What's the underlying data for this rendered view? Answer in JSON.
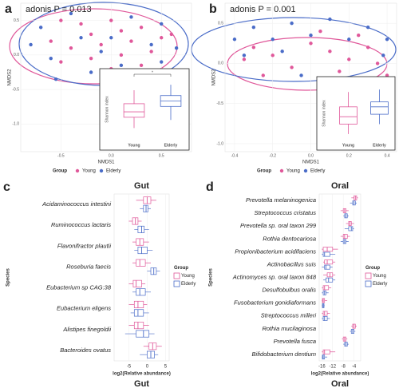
{
  "chart_data": [
    {
      "type": "scatter",
      "label": "a",
      "annotation": "adonis P = 0.013",
      "xlabel": "NMDS1",
      "ylabel": "NMDS2",
      "xlim": [
        -0.9,
        0.8
      ],
      "ylim": [
        -1.4,
        0.75
      ],
      "xticks": [
        -0.5,
        {
          "value": 0,
          "label": "0.0"
        },
        0.5
      ],
      "yticks": [
        0.5,
        {
          "value": 0,
          "label": "0.0"
        },
        -0.5,
        {
          "value": -1,
          "label": "-1.0"
        }
      ],
      "legend_title": "Group",
      "series": [
        {
          "name": "Young",
          "color": "#e0589a",
          "x": [
            -0.5,
            -0.3,
            -0.2,
            0.0,
            0.1,
            0.3,
            -0.6,
            -0.4,
            -0.1,
            0.2,
            0.5,
            -0.2,
            0.1,
            0.4,
            -0.5,
            0.0,
            0.3,
            0.6
          ],
          "values": [
            0.5,
            0.45,
            0.3,
            0.5,
            0.35,
            0.4,
            0.2,
            0.1,
            0.15,
            0.2,
            0.25,
            -0.05,
            0.0,
            0.05,
            -0.1,
            -0.2,
            -0.15,
            0.3
          ]
        },
        {
          "name": "Elderly",
          "color": "#4a6cc8",
          "x": [
            -0.7,
            -0.4,
            0.2,
            0.5,
            -0.3,
            0.0,
            0.4,
            -0.6,
            -0.2,
            0.2,
            0.5,
            0.65,
            -0.1,
            -0.8,
            -0.55,
            0.1
          ],
          "values": [
            0.4,
            0.6,
            0.55,
            0.45,
            0.25,
            0.25,
            0.15,
            -0.05,
            -0.25,
            -0.3,
            -0.1,
            0.1,
            0.05,
            0.15,
            -0.35,
            -0.15
          ]
        }
      ],
      "inset": {
        "type": "box",
        "ylabel": "Shannon index",
        "annotation": "*",
        "ylim": [
          2.6,
          4.9
        ],
        "categories": [
          "Young",
          "Elderly"
        ],
        "colors": [
          "#e0589a",
          "#4a6cc8"
        ],
        "values": [
          [
            3.0,
            3.4,
            3.6,
            3.9,
            4.4
          ],
          [
            3.3,
            3.8,
            4.0,
            4.2,
            4.6
          ]
        ]
      }
    },
    {
      "type": "scatter",
      "label": "b",
      "annotation": "adonis P = 0.001",
      "xlabel": "NMDS1",
      "ylabel": "NMDS2",
      "xlim": [
        -0.45,
        0.45
      ],
      "ylim": [
        -1.1,
        0.75
      ],
      "xticks": [
        -0.4,
        -0.2,
        {
          "value": 0,
          "label": "0.0"
        },
        0.2,
        0.4
      ],
      "yticks": [
        0.5,
        {
          "value": 0,
          "label": "0.0"
        },
        -0.5,
        {
          "value": -1,
          "label": "-1.0"
        }
      ],
      "legend_title": "Group",
      "series": [
        {
          "name": "Young",
          "color": "#e0589a",
          "x": [
            -0.3,
            -0.2,
            0.0,
            0.1,
            0.2,
            0.3,
            -0.1,
            0.15,
            0.35,
            -0.25,
            0.05,
            0.25,
            0.4,
            -0.35
          ],
          "values": [
            0.2,
            0.1,
            0.25,
            0.15,
            0.05,
            0.2,
            -0.05,
            -0.1,
            0.0,
            -0.15,
            0.4,
            0.35,
            -0.15,
            0.05
          ]
        },
        {
          "name": "Elderly",
          "color": "#4a6cc8",
          "x": [
            -0.4,
            -0.3,
            -0.1,
            0.1,
            0.3,
            0.4,
            -0.2,
            0.0,
            0.2,
            -0.35,
            -0.15,
            0.38,
            -0.05
          ],
          "values": [
            0.3,
            0.45,
            0.5,
            0.55,
            0.45,
            0.3,
            0.3,
            0.35,
            0.3,
            0.1,
            0.15,
            0.1,
            -0.15
          ]
        }
      ],
      "inset": {
        "type": "box",
        "ylabel": "Shannon index",
        "ylim": [
          2.4,
          4.6
        ],
        "categories": [
          "Young",
          "Elderly"
        ],
        "colors": [
          "#e0589a",
          "#4a6cc8"
        ],
        "values": [
          [
            2.6,
            3.0,
            3.3,
            3.7,
            4.3
          ],
          [
            3.0,
            3.4,
            3.7,
            3.9,
            4.4
          ]
        ]
      }
    },
    {
      "type": "box",
      "label": "c",
      "title": "Gut",
      "caption": "Gut",
      "xlabel": "log2(Relative abundance)",
      "ylabel": "Species",
      "xlim": [
        -9,
        6
      ],
      "xticks": [
        -5,
        0,
        5
      ],
      "legend_title": "Group",
      "categories": [
        "Acidaminococcus intestini",
        "Ruminococcus lactaris",
        "Flavonifractor plautii",
        "Roseburia faecis",
        "Eubacterium sp CAG:38",
        "Eubacterium eligens",
        "Alistipes finegoldii",
        "Bacteroides ovatus"
      ],
      "series": [
        {
          "name": "Young",
          "color": "#e0589a",
          "values": [
            [
              -3,
              -1,
              0,
              1,
              2.5
            ],
            [
              -5,
              -4,
              -3.2,
              -2.5,
              -1.5
            ],
            [
              -4,
              -3,
              -2,
              -1,
              0.5
            ],
            [
              -4,
              -3,
              -2,
              -0.5,
              1
            ],
            [
              -5,
              -3.8,
              -3,
              -1.5,
              -0.5
            ],
            [
              -5,
              -3.5,
              -2.5,
              -1,
              0
            ],
            [
              -5,
              -3.5,
              -2.5,
              -1,
              0.5
            ],
            [
              -1,
              0.5,
              1.5,
              2.5,
              4
            ]
          ]
        },
        {
          "name": "Elderly",
          "color": "#4a6cc8",
          "values": [
            [
              -2,
              -1,
              -0.3,
              0.2,
              1
            ],
            [
              -3.5,
              -2.5,
              -1.5,
              -0.8,
              0.5
            ],
            [
              -3.5,
              -2.5,
              -1.5,
              0,
              1.5
            ],
            [
              0,
              1,
              1.8,
              2.5,
              3.5
            ],
            [
              -4,
              -3,
              -2,
              -0.5,
              1
            ],
            [
              -4.5,
              -3.5,
              -2.5,
              -1,
              0.5
            ],
            [
              -6,
              -3,
              -1,
              0.5,
              2
            ],
            [
              -2,
              0,
              1,
              2,
              3
            ]
          ]
        }
      ]
    },
    {
      "type": "box",
      "label": "d",
      "title": "Oral",
      "caption": "Oral",
      "xlabel": "log2(Relative abundance)",
      "ylabel": "Species",
      "xlim": [
        -17,
        -1.5
      ],
      "xticks": [
        -16,
        -12,
        -8,
        -4
      ],
      "legend_title": "Group",
      "categories": [
        "Prevotella melaninogenica",
        "Streptococcus cristatus",
        "Prevotella sp. oral taxon 299",
        "Rothia dentocariosa",
        "Propionibacterium acidifaciens",
        "Actinobacillus suis",
        "Actinomyces sp. oral taxon 848",
        "Desulfobulbus oralis",
        "Fusobacterium gonidiaformans",
        "Streptococcus milleri",
        "Rothia mucilaginosa",
        "Prevotella fusca",
        "Bifidobacterium dentium"
      ],
      "series": [
        {
          "name": "Young",
          "color": "#e0589a",
          "values": [
            [
              -5,
              -4,
              -3.5,
              -3,
              -2.5
            ],
            [
              -9,
              -8,
              -7.5,
              -7,
              -6
            ],
            [
              -7,
              -6,
              -5.5,
              -5,
              -4
            ],
            [
              -9,
              -8,
              -7.5,
              -6.5,
              -5.5
            ],
            [
              -16,
              -15.5,
              -14,
              -12,
              -10
            ],
            [
              -15.5,
              -15,
              -14,
              -12,
              -11
            ],
            [
              -15.5,
              -14,
              -13,
              -12,
              -11
            ],
            [
              -16,
              -15.5,
              -15,
              -13.5,
              -12.5
            ],
            [
              -16,
              -15.8,
              -15.5,
              -15,
              -14
            ],
            [
              -16,
              -15.5,
              -15,
              -14,
              -13
            ],
            [
              -5,
              -4.5,
              -4,
              -3.5,
              -3
            ],
            [
              -8.5,
              -8,
              -7.5,
              -7,
              -6.5
            ],
            [
              -16,
              -15.5,
              -15,
              -13,
              -11
            ]
          ]
        },
        {
          "name": "Elderly",
          "color": "#4a6cc8",
          "values": [
            [
              -5.5,
              -4.5,
              -4,
              -3.5,
              -3
            ],
            [
              -8,
              -7.5,
              -7,
              -6.5,
              -6
            ],
            [
              -7.5,
              -6,
              -5,
              -4.5,
              -4
            ],
            [
              -9,
              -8,
              -7.5,
              -7,
              -6
            ],
            [
              -16,
              -15.5,
              -15,
              -13,
              -11
            ],
            [
              -16,
              -15,
              -14.5,
              -13,
              -12
            ],
            [
              -15.5,
              -14.5,
              -13.5,
              -12,
              -11
            ],
            [
              -16,
              -15.5,
              -15,
              -14.5,
              -13.5
            ],
            [
              -16,
              -15.8,
              -15.5,
              -15.2,
              -15
            ],
            [
              -16,
              -15.5,
              -15,
              -14,
              -13
            ],
            [
              -5.5,
              -5,
              -4.5,
              -4,
              -3.5
            ],
            [
              -8,
              -7.5,
              -7,
              -6.5,
              -6
            ],
            [
              -16,
              -15.8,
              -15.5,
              -15,
              -14
            ]
          ]
        }
      ]
    }
  ]
}
